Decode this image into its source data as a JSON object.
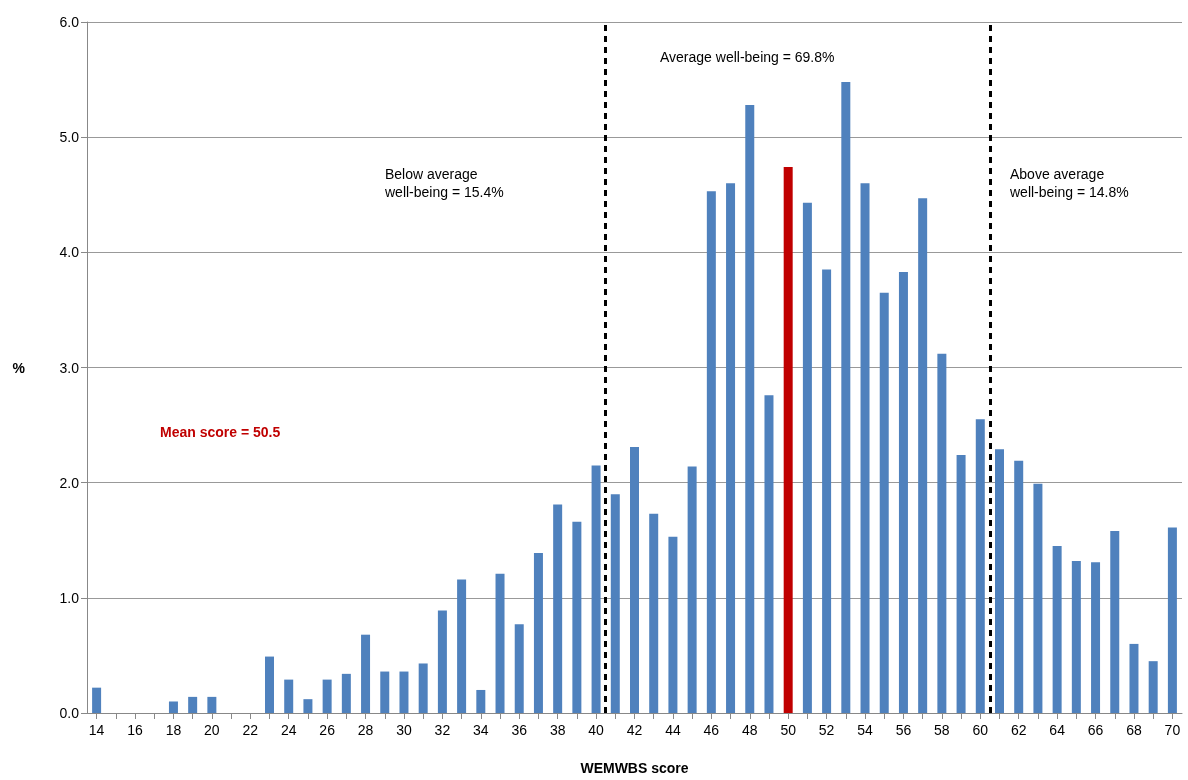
{
  "chart_data": {
    "type": "bar",
    "xlabel": "WEMWBS score",
    "ylabel": "%",
    "x": [
      14,
      15,
      16,
      17,
      18,
      19,
      20,
      21,
      22,
      23,
      24,
      25,
      26,
      27,
      28,
      29,
      30,
      31,
      32,
      33,
      34,
      35,
      36,
      37,
      38,
      39,
      40,
      41,
      42,
      43,
      44,
      45,
      46,
      47,
      48,
      49,
      50,
      51,
      52,
      53,
      54,
      55,
      56,
      57,
      58,
      59,
      60,
      61,
      62,
      63,
      64,
      65,
      66,
      67,
      68,
      69,
      70
    ],
    "values": [
      0.22,
      0,
      0,
      0,
      0.1,
      0.14,
      0.14,
      0,
      0,
      0.49,
      0.29,
      0.12,
      0.29,
      0.34,
      0.68,
      0.36,
      0.36,
      0.43,
      0.89,
      1.16,
      0.2,
      1.21,
      0.77,
      1.39,
      1.81,
      1.66,
      2.15,
      1.9,
      2.31,
      1.73,
      1.53,
      2.14,
      4.53,
      4.6,
      5.28,
      2.76,
      4.74,
      4.43,
      3.85,
      5.48,
      4.6,
      3.65,
      3.83,
      4.47,
      3.12,
      2.24,
      2.55,
      2.29,
      2.19,
      1.99,
      1.45,
      1.32,
      1.31,
      1.58,
      0.6,
      0.45,
      1.61
    ],
    "colors": [
      "#4f81bd",
      "#4f81bd",
      "#4f81bd",
      "#4f81bd",
      "#4f81bd",
      "#4f81bd",
      "#4f81bd",
      "#4f81bd",
      "#4f81bd",
      "#4f81bd",
      "#4f81bd",
      "#4f81bd",
      "#4f81bd",
      "#4f81bd",
      "#4f81bd",
      "#4f81bd",
      "#4f81bd",
      "#4f81bd",
      "#4f81bd",
      "#4f81bd",
      "#4f81bd",
      "#4f81bd",
      "#4f81bd",
      "#4f81bd",
      "#4f81bd",
      "#4f81bd",
      "#4f81bd",
      "#4f81bd",
      "#4f81bd",
      "#4f81bd",
      "#4f81bd",
      "#4f81bd",
      "#4f81bd",
      "#4f81bd",
      "#4f81bd",
      "#4f81bd",
      "#c00000",
      "#4f81bd",
      "#4f81bd",
      "#4f81bd",
      "#4f81bd",
      "#4f81bd",
      "#4f81bd",
      "#4f81bd",
      "#4f81bd",
      "#4f81bd",
      "#4f81bd",
      "#4f81bd",
      "#4f81bd",
      "#4f81bd",
      "#4f81bd",
      "#4f81bd",
      "#4f81bd",
      "#4f81bd",
      "#4f81bd",
      "#4f81bd",
      "#4f81bd"
    ],
    "xlim": [
      13.5,
      70.5
    ],
    "xticks": [
      14,
      {
        "value": 15,
        "label": null
      },
      16,
      {
        "value": 17,
        "label": null
      },
      18,
      {
        "value": 19,
        "label": null
      },
      20,
      {
        "value": 21,
        "label": null
      },
      22,
      {
        "value": 23,
        "label": null
      },
      24,
      {
        "value": 25,
        "label": null
      },
      26,
      {
        "value": 27,
        "label": null
      },
      28,
      {
        "value": 29,
        "label": null
      },
      30,
      {
        "value": 31,
        "label": null
      },
      32,
      {
        "value": 33,
        "label": null
      },
      34,
      {
        "value": 35,
        "label": null
      },
      36,
      {
        "value": 37,
        "label": null
      },
      38,
      {
        "value": 39,
        "label": null
      },
      40,
      {
        "value": 41,
        "label": null
      },
      42,
      {
        "value": 43,
        "label": null
      },
      44,
      {
        "value": 45,
        "label": null
      },
      46,
      {
        "value": 47,
        "label": null
      },
      48,
      {
        "value": 49,
        "label": null
      },
      50,
      {
        "value": 51,
        "label": null
      },
      52,
      {
        "value": 53,
        "label": null
      },
      54,
      {
        "value": 55,
        "label": null
      },
      56,
      {
        "value": 57,
        "label": null
      },
      58,
      {
        "value": 59,
        "label": null
      },
      60,
      {
        "value": 61,
        "label": null
      },
      62,
      {
        "value": 63,
        "label": null
      },
      64,
      {
        "value": 65,
        "label": null
      },
      66,
      {
        "value": 67,
        "label": null
      },
      68,
      {
        "value": 69,
        "label": null
      },
      70
    ],
    "ylim": [
      0,
      6
    ],
    "yticks": [
      {
        "value": 0,
        "label": "0.0"
      },
      {
        "value": 1,
        "label": "1.0"
      },
      {
        "value": 2,
        "label": "2.0"
      },
      {
        "value": 3,
        "label": "3.0"
      },
      {
        "value": 4,
        "label": "4.0"
      },
      {
        "value": 5,
        "label": "5.0"
      },
      {
        "value": 6,
        "label": "6.0"
      }
    ],
    "grid": "y",
    "ref_lines": [
      {
        "axis": "x",
        "value": 40.5,
        "color": "#000000",
        "line_style": "dashed"
      },
      {
        "axis": "x",
        "value": 60.5,
        "color": "#000000",
        "line_style": "dashed"
      }
    ],
    "annotations": [
      "Average well-being = 69.8%",
      "Below average well-being = 15.4%",
      "Above average well-being = 14.8%",
      "Mean score = 50.5"
    ]
  }
}
